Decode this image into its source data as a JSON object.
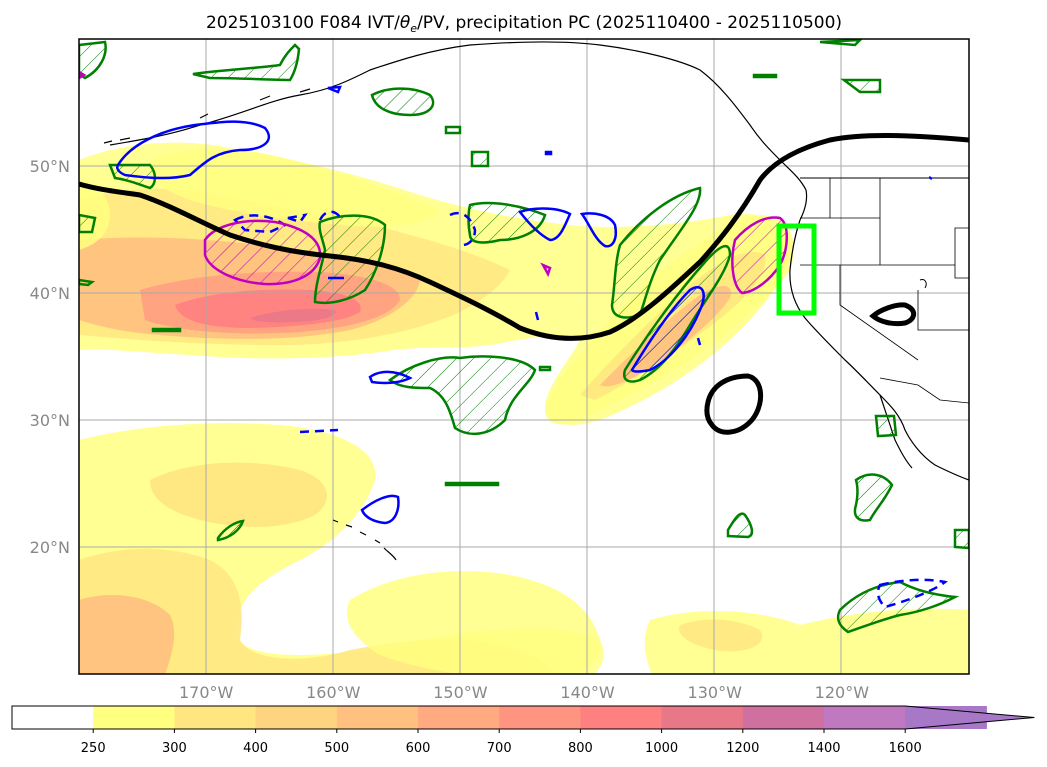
{
  "title": {
    "prefix": "2025103100 F084 IVT/",
    "theta": "θ",
    "theta_sub": "e",
    "suffix": "/PV, precipitation PC (2025110400 - 2025110500)"
  },
  "map": {
    "lon_range": [
      -180,
      -110
    ],
    "lat_range": [
      10,
      60
    ],
    "lon_ticks": [
      {
        "value": -170,
        "label": "170°W"
      },
      {
        "value": -160,
        "label": "160°W"
      },
      {
        "value": -150,
        "label": "150°W"
      },
      {
        "value": -140,
        "label": "140°W"
      },
      {
        "value": -130,
        "label": "130°W"
      },
      {
        "value": -120,
        "label": "120°W"
      }
    ],
    "lat_ticks": [
      {
        "value": 50,
        "label": "50°N"
      },
      {
        "value": 40,
        "label": "40°N"
      },
      {
        "value": 30,
        "label": "30°N"
      },
      {
        "value": 20,
        "label": "20°N"
      }
    ],
    "grid": true
  },
  "colorbar": {
    "ticks": [
      "250",
      "300",
      "400",
      "500",
      "600",
      "700",
      "800",
      "1000",
      "1200",
      "1400",
      "1600"
    ],
    "colors": [
      "#ffffff",
      "#ffff80",
      "#ffe680",
      "#ffd480",
      "#ffc080",
      "#ffaa80",
      "#ff9580",
      "#ff8080",
      "#e87888",
      "#d070a0",
      "#c078c0",
      "#a878c8"
    ],
    "extend": "max"
  },
  "colors": {
    "jet_line": "#000000",
    "theta_contour": "#008000",
    "pv_contour": "#0000ff",
    "magenta_contour": "#c000c0",
    "highlight_box": "#00ff00",
    "coastline": "#000000"
  }
}
